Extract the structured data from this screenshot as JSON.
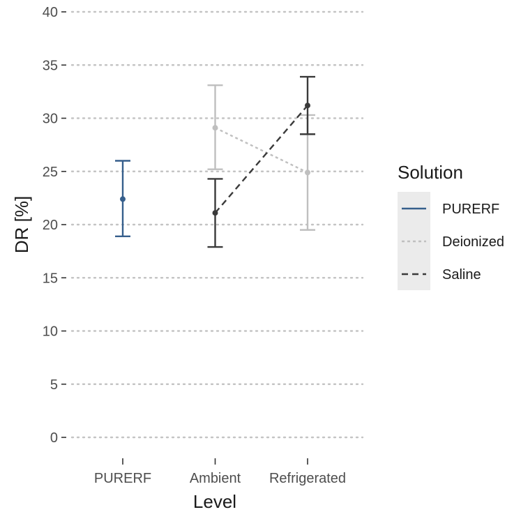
{
  "chart_data": {
    "type": "line",
    "title": "",
    "xlabel": "Level",
    "ylabel": "DR [%]",
    "categories": [
      "PURERF",
      "Ambient",
      "Refrigerated"
    ],
    "ylim": [
      0,
      40
    ],
    "yticks": [
      "0",
      "5",
      "10",
      "15",
      "20",
      "25",
      "30",
      "35",
      "40"
    ],
    "grid": "horizontal-dotted",
    "legend": {
      "title": "Solution",
      "placement": "right",
      "entries": [
        "PURERF",
        "Deionized",
        "Saline"
      ]
    },
    "series": [
      {
        "name": "PURERF",
        "color": "#365f8c",
        "line_style": "solid",
        "points": [
          {
            "category": "PURERF",
            "mean": 22.4,
            "lower": 18.9,
            "upper": 26.0
          }
        ]
      },
      {
        "name": "Deionized",
        "color": "#bfbfbf",
        "line_style": "dotted",
        "points": [
          {
            "category": "Ambient",
            "mean": 29.1,
            "lower": 25.2,
            "upper": 33.1
          },
          {
            "category": "Refrigerated",
            "mean": 24.9,
            "lower": 19.5,
            "upper": 30.3
          }
        ]
      },
      {
        "name": "Saline",
        "color": "#3a3a3a",
        "line_style": "dashed",
        "points": [
          {
            "category": "Ambient",
            "mean": 21.1,
            "lower": 17.9,
            "upper": 24.3
          },
          {
            "category": "Refrigerated",
            "mean": 31.2,
            "lower": 28.5,
            "upper": 33.9
          }
        ]
      }
    ]
  }
}
